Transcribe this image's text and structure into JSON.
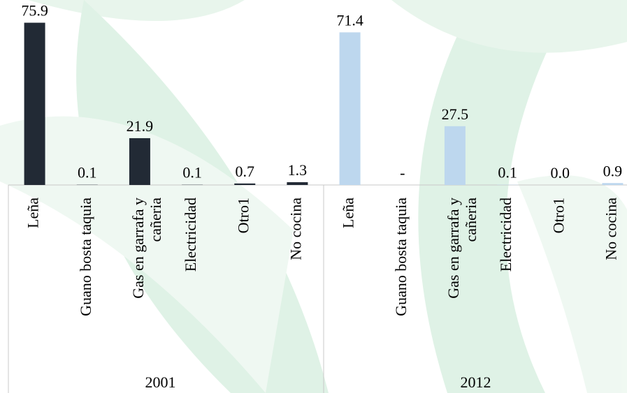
{
  "chart_data": {
    "type": "bar",
    "categories": [
      "Leña",
      "Guano bosta taquia",
      "Gas en garrafa y cañeria",
      "Electricidad",
      "Otro1",
      "No cocina"
    ],
    "series": [
      {
        "name": "2001",
        "color": "#222a35",
        "values": [
          75.9,
          0.1,
          21.9,
          0.1,
          0.7,
          1.3
        ]
      },
      {
        "name": "2012",
        "color": "#bdd7ee",
        "values": [
          71.4,
          null,
          27.5,
          0.1,
          0,
          0.9
        ],
        "value_labels": [
          "71.4",
          "-",
          "27.5",
          "0.1",
          "0.0",
          "0.9"
        ]
      }
    ],
    "ylim": [
      0,
      80
    ]
  }
}
